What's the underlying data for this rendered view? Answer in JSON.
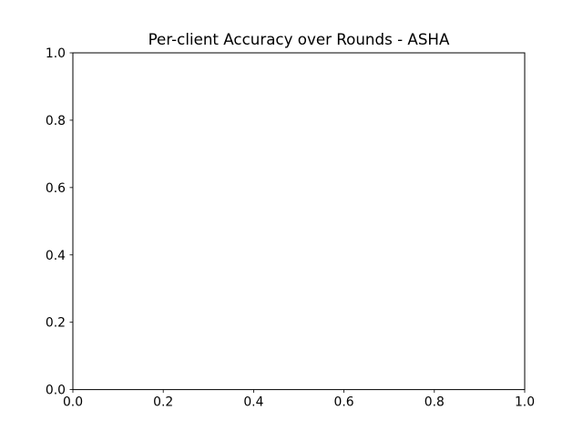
{
  "chart_data": {
    "type": "line",
    "title": "Per-client Accuracy over Rounds - ASHA",
    "xlabel": "",
    "ylabel": "",
    "xlim": [
      0.0,
      1.0
    ],
    "ylim": [
      0.0,
      1.0
    ],
    "x_ticks": [
      0.0,
      0.2,
      0.4,
      0.6,
      0.8,
      1.0
    ],
    "x_tick_labels": [
      "0.0",
      "0.2",
      "0.4",
      "0.6",
      "0.8",
      "1.0"
    ],
    "y_ticks": [
      0.0,
      0.2,
      0.4,
      0.6,
      0.8,
      1.0
    ],
    "y_tick_labels": [
      "0.0",
      "0.2",
      "0.4",
      "0.6",
      "0.8",
      "1.0"
    ],
    "grid": false,
    "series": []
  }
}
